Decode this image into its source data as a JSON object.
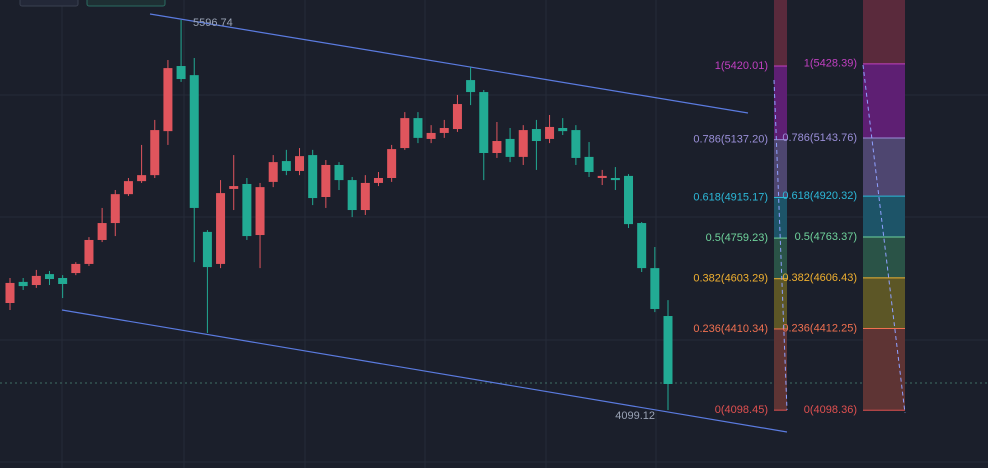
{
  "chart_data": {
    "type": "candlestick",
    "up_color": "#e0555d",
    "down_color": "#22ab94",
    "ylim": [
      3876.4,
      5673.5
    ],
    "open": [
      4510,
      4591,
      4579,
      4621,
      4606,
      4625,
      4660,
      4752,
      4817,
      4928,
      4978,
      5001,
      5170,
      5420,
      5385,
      4783,
      4660,
      4948,
      4967,
      4771,
      4975,
      5055,
      5017,
      5078,
      4917,
      5040,
      4982,
      4867,
      4971,
      4990,
      5105,
      5220,
      5140,
      5163,
      5178,
      5366,
      5320,
      5086,
      5140,
      5071,
      5178,
      5140,
      5182,
      5174,
      5071,
      4990,
      4990,
      4998,
      4817,
      4644,
      4460
    ],
    "high": [
      4606,
      4606,
      4637,
      4633,
      4617,
      4667,
      4763,
      4875,
      4944,
      4990,
      5117,
      5213,
      5443,
      5596.74,
      5451,
      4790,
      4982,
      5078,
      4990,
      4971,
      5078,
      5098,
      5105,
      5098,
      5059,
      5051,
      4994,
      5001,
      5013,
      5117,
      5243,
      5243,
      5193,
      5213,
      5309,
      5416,
      5328,
      5205,
      5182,
      5193,
      5213,
      5232,
      5220,
      5193,
      5128,
      5021,
      5032,
      5005,
      4821,
      4725,
      4521
    ],
    "low": [
      4483,
      4560,
      4568,
      4579,
      4529,
      4617,
      4652,
      4744,
      4767,
      4921,
      4971,
      4990,
      5117,
      5359,
      4667,
      4395,
      4644,
      4867,
      4752,
      4644,
      4955,
      5001,
      5001,
      4886,
      4875,
      4944,
      4840,
      4848,
      4959,
      4975,
      5098,
      5124,
      5124,
      5144,
      5167,
      5270,
      4982,
      5067,
      5051,
      5040,
      5021,
      5124,
      5155,
      5040,
      4994,
      4963,
      4944,
      4798,
      4629,
      4475,
      4099.12
    ],
    "close": [
      4587,
      4575,
      4614,
      4602,
      4583,
      4660,
      4752,
      4817,
      4928,
      4978,
      5001,
      5174,
      5412,
      5370,
      4875,
      4648,
      4932,
      4959,
      4767,
      4955,
      5051,
      5017,
      5074,
      4913,
      5040,
      4982,
      4867,
      4971,
      4990,
      5101,
      5220,
      5144,
      5163,
      5182,
      5274,
      5320,
      5086,
      5132,
      5071,
      5174,
      5132,
      5186,
      5170,
      5067,
      5013,
      4998,
      4982,
      4813,
      4644,
      4487,
      4199
    ],
    "annotations": [
      "5596.74",
      "4099.12"
    ],
    "fibs": [
      {
        "top_fill": "#5a2a3c",
        "levels": [
          {
            "price": 5420.01,
            "label": "1(5420.01)",
            "color": "#c040c0",
            "fill": "#5e1f73"
          },
          {
            "price": 5137.2,
            "label": "0.786(5137.20)",
            "color": "#9a8fd8",
            "fill": "#4e4670"
          },
          {
            "price": 4915.17,
            "label": "0.618(4915.17)",
            "color": "#2cb8d8",
            "fill": "#1d5468"
          },
          {
            "price": 4759.23,
            "label": "0.5(4759.23)",
            "color": "#6fd39c",
            "fill": "#2a5347"
          },
          {
            "price": 4603.29,
            "label": "0.382(4603.29)",
            "color": "#f0b030",
            "fill": "#5c5626"
          },
          {
            "price": 4410.34,
            "label": "0.236(4410.34)",
            "color": "#f07050",
            "fill": "#5e3434"
          },
          {
            "price": 4098.45,
            "label": "0(4098.45)",
            "color": "#e05050",
            "fill": "#5e3434"
          }
        ]
      },
      {
        "top_fill": "#5a2a3c",
        "levels": [
          {
            "price": 5428.39,
            "label": "1(5428.39)",
            "color": "#c040c0",
            "fill": "#5e1f73"
          },
          {
            "price": 5143.76,
            "label": "0.786(5143.76)",
            "color": "#9a8fd8",
            "fill": "#4e4670"
          },
          {
            "price": 4920.32,
            "label": "0.618(4920.32)",
            "color": "#2cb8d8",
            "fill": "#1d5468"
          },
          {
            "price": 4763.37,
            "label": "0.5(4763.37)",
            "color": "#6fd39c",
            "fill": "#2a5347"
          },
          {
            "price": 4606.43,
            "label": "0.382(4606.43)",
            "color": "#f0b030",
            "fill": "#5c5626"
          },
          {
            "price": 4412.25,
            "label": "0.236(4412.25)",
            "color": "#f07050",
            "fill": "#5e3434"
          },
          {
            "price": 4098.36,
            "label": "0(4098.36)",
            "color": "#e05050",
            "fill": "#5e3434"
          }
        ]
      }
    ]
  }
}
